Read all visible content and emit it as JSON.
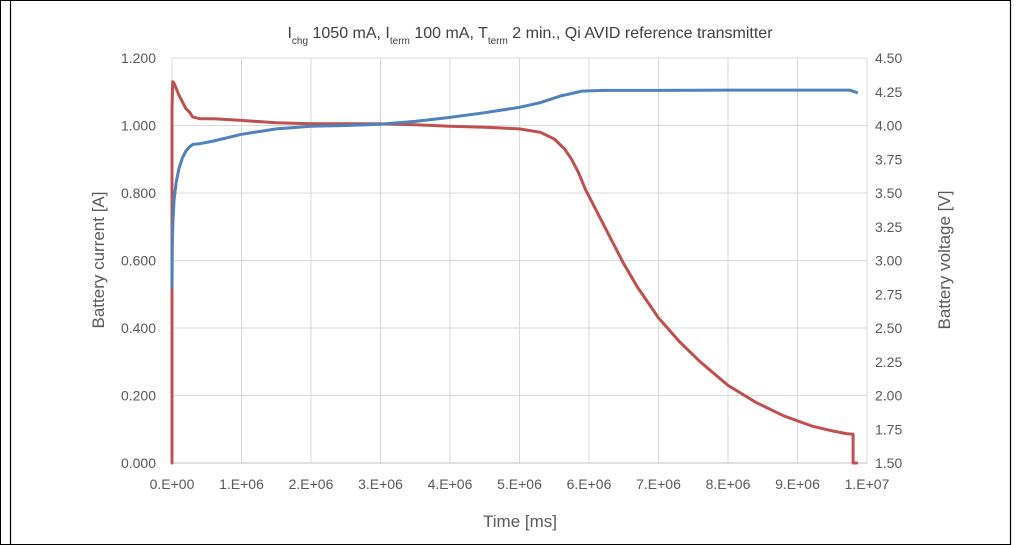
{
  "chart_data": {
    "type": "line",
    "title_parts": [
      {
        "text": "I",
        "sub": "chg"
      },
      {
        "text": " 1050 mA, I",
        "sub": "term"
      },
      {
        "text": " 100 mA, T",
        "sub": "term"
      },
      {
        "text": " 2 min., Qi AVID reference transmitter",
        "sub": ""
      }
    ],
    "xlabel": "Time [ms]",
    "ylabel_left": "Battery current [A]",
    "ylabel_right": "Battery voltage [V]",
    "xlim": [
      0,
      10000000
    ],
    "ylim_left": [
      0,
      1.2
    ],
    "ylim_right": [
      1.5,
      4.5
    ],
    "x_ticks": [
      {
        "v": 0,
        "label": "0.E+00"
      },
      {
        "v": 1000000,
        "label": "1.E+06"
      },
      {
        "v": 2000000,
        "label": "2.E+06"
      },
      {
        "v": 3000000,
        "label": "3.E+06"
      },
      {
        "v": 4000000,
        "label": "4.E+06"
      },
      {
        "v": 5000000,
        "label": "5.E+06"
      },
      {
        "v": 6000000,
        "label": "6.E+06"
      },
      {
        "v": 7000000,
        "label": "7.E+06"
      },
      {
        "v": 8000000,
        "label": "8.E+06"
      },
      {
        "v": 9000000,
        "label": "9.E+06"
      },
      {
        "v": 10000000,
        "label": "1.E+07"
      }
    ],
    "y_left_ticks": [
      {
        "v": 0,
        "label": "0.000"
      },
      {
        "v": 0.2,
        "label": "0.200"
      },
      {
        "v": 0.4,
        "label": "0.400"
      },
      {
        "v": 0.6,
        "label": "0.600"
      },
      {
        "v": 0.8,
        "label": "0.800"
      },
      {
        "v": 1.0,
        "label": "1.000"
      },
      {
        "v": 1.2,
        "label": "1.200"
      }
    ],
    "y_right_ticks": [
      {
        "v": 1.5,
        "label": "1.50"
      },
      {
        "v": 1.75,
        "label": "1.75"
      },
      {
        "v": 2.0,
        "label": "2.00"
      },
      {
        "v": 2.25,
        "label": "2.25"
      },
      {
        "v": 2.5,
        "label": "2.50"
      },
      {
        "v": 2.75,
        "label": "2.75"
      },
      {
        "v": 3.0,
        "label": "3.00"
      },
      {
        "v": 3.25,
        "label": "3.25"
      },
      {
        "v": 3.5,
        "label": "3.50"
      },
      {
        "v": 3.75,
        "label": "3.75"
      },
      {
        "v": 4.0,
        "label": "4.00"
      },
      {
        "v": 4.25,
        "label": "4.25"
      },
      {
        "v": 4.5,
        "label": "4.50"
      }
    ],
    "grid": true,
    "legend": "none",
    "series": [
      {
        "axis": "left",
        "color": "#c0504d",
        "x": [
          0,
          0,
          10000,
          30000,
          60000,
          100000,
          150000,
          200000,
          250000,
          300000,
          400000,
          600000,
          1000000,
          1500000,
          2000000,
          2500000,
          3000000,
          3500000,
          4000000,
          4500000,
          5000000,
          5300000,
          5500000,
          5650000,
          5750000,
          5850000,
          5950000,
          6100000,
          6300000,
          6500000,
          6700000,
          7000000,
          7300000,
          7600000,
          8000000,
          8400000,
          8800000,
          9200000,
          9500000,
          9700000,
          9800000,
          9800000,
          9850000
        ],
        "values": [
          0.0,
          1.05,
          1.13,
          1.125,
          1.11,
          1.09,
          1.07,
          1.05,
          1.04,
          1.025,
          1.02,
          1.02,
          1.015,
          1.008,
          1.005,
          1.005,
          1.005,
          1.002,
          0.998,
          0.995,
          0.99,
          0.98,
          0.96,
          0.93,
          0.9,
          0.86,
          0.81,
          0.75,
          0.67,
          0.59,
          0.52,
          0.43,
          0.36,
          0.3,
          0.23,
          0.18,
          0.14,
          0.11,
          0.095,
          0.087,
          0.085,
          0.0,
          0.0
        ]
      },
      {
        "axis": "right",
        "color": "#4f81bd",
        "x": [
          0,
          5000,
          15000,
          30000,
          60000,
          100000,
          150000,
          200000,
          250000,
          300000,
          400000,
          600000,
          1000000,
          1500000,
          2000000,
          2500000,
          3000000,
          3500000,
          4000000,
          4500000,
          5000000,
          5300000,
          5600000,
          5900000,
          6200000,
          7000000,
          8000000,
          9000000,
          9600000,
          9750000,
          9850000
        ],
        "values": [
          2.8,
          3.1,
          3.3,
          3.45,
          3.58,
          3.68,
          3.76,
          3.81,
          3.84,
          3.86,
          3.865,
          3.885,
          3.935,
          3.975,
          3.995,
          4.0,
          4.01,
          4.03,
          4.06,
          4.095,
          4.135,
          4.17,
          4.22,
          4.255,
          4.26,
          4.26,
          4.262,
          4.262,
          4.262,
          4.262,
          4.245
        ]
      }
    ]
  }
}
